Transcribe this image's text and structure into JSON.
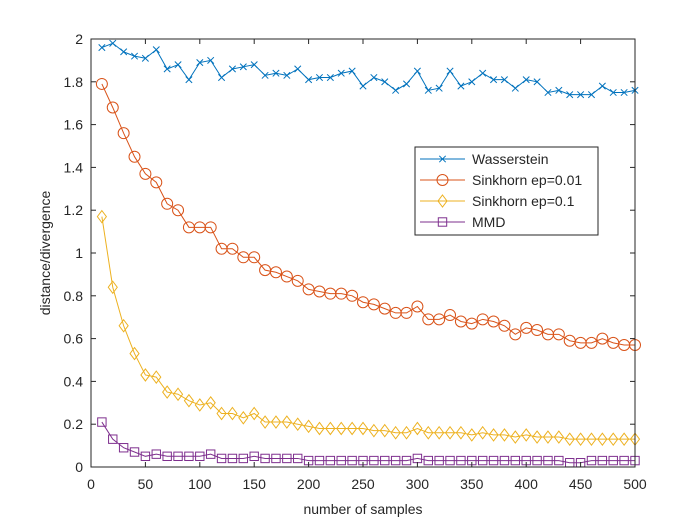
{
  "chart_data": {
    "type": "line",
    "title": "",
    "xlabel": "number of samples",
    "ylabel": "distance/divergence",
    "xlim": [
      0,
      500
    ],
    "ylim": [
      0,
      2
    ],
    "xticks": [
      0,
      50,
      100,
      150,
      200,
      250,
      300,
      350,
      400,
      450,
      500
    ],
    "yticks": [
      0,
      0.2,
      0.4,
      0.6,
      0.8,
      1,
      1.2,
      1.4,
      1.6,
      1.8,
      2
    ],
    "grid": false,
    "legend_position": "center-right",
    "x": [
      10,
      20,
      30,
      40,
      50,
      60,
      70,
      80,
      90,
      100,
      110,
      120,
      130,
      140,
      150,
      160,
      170,
      180,
      190,
      200,
      210,
      220,
      230,
      240,
      250,
      260,
      270,
      280,
      290,
      300,
      310,
      320,
      330,
      340,
      350,
      360,
      370,
      380,
      390,
      400,
      410,
      420,
      430,
      440,
      450,
      460,
      470,
      480,
      490,
      500
    ],
    "series": [
      {
        "name": "Wasserstein",
        "color": "#0072BD",
        "marker": "x",
        "values": [
          1.96,
          1.98,
          1.94,
          1.92,
          1.91,
          1.95,
          1.86,
          1.88,
          1.81,
          1.89,
          1.9,
          1.82,
          1.86,
          1.87,
          1.88,
          1.83,
          1.84,
          1.83,
          1.86,
          1.81,
          1.82,
          1.82,
          1.84,
          1.85,
          1.78,
          1.82,
          1.8,
          1.76,
          1.79,
          1.85,
          1.76,
          1.77,
          1.85,
          1.78,
          1.8,
          1.84,
          1.81,
          1.81,
          1.77,
          1.81,
          1.8,
          1.75,
          1.76,
          1.74,
          1.74,
          1.74,
          1.78,
          1.75,
          1.75,
          1.76
        ]
      },
      {
        "name": "Sinkhorn ep=0.01",
        "color": "#D95319",
        "marker": "circle",
        "values": [
          1.79,
          1.68,
          1.56,
          1.45,
          1.37,
          1.33,
          1.23,
          1.2,
          1.12,
          1.12,
          1.12,
          1.02,
          1.02,
          0.98,
          0.98,
          0.92,
          0.91,
          0.89,
          0.87,
          0.83,
          0.82,
          0.81,
          0.81,
          0.8,
          0.77,
          0.76,
          0.74,
          0.72,
          0.72,
          0.75,
          0.69,
          0.69,
          0.71,
          0.68,
          0.67,
          0.69,
          0.68,
          0.66,
          0.62,
          0.65,
          0.64,
          0.62,
          0.62,
          0.59,
          0.58,
          0.58,
          0.6,
          0.58,
          0.57,
          0.57
        ]
      },
      {
        "name": "Sinkhorn ep=0.1",
        "color": "#EDB120",
        "marker": "diamond",
        "values": [
          1.17,
          0.84,
          0.66,
          0.53,
          0.43,
          0.42,
          0.35,
          0.34,
          0.31,
          0.29,
          0.3,
          0.25,
          0.25,
          0.23,
          0.25,
          0.21,
          0.21,
          0.21,
          0.2,
          0.19,
          0.18,
          0.18,
          0.18,
          0.18,
          0.18,
          0.17,
          0.17,
          0.16,
          0.16,
          0.18,
          0.16,
          0.16,
          0.16,
          0.16,
          0.15,
          0.16,
          0.15,
          0.15,
          0.14,
          0.15,
          0.14,
          0.14,
          0.14,
          0.13,
          0.13,
          0.13,
          0.13,
          0.13,
          0.13,
          0.13
        ]
      },
      {
        "name": "MMD",
        "color": "#7E2F8E",
        "marker": "square",
        "values": [
          0.21,
          0.13,
          0.09,
          0.07,
          0.05,
          0.06,
          0.05,
          0.05,
          0.05,
          0.05,
          0.06,
          0.04,
          0.04,
          0.04,
          0.05,
          0.04,
          0.04,
          0.04,
          0.04,
          0.03,
          0.03,
          0.03,
          0.03,
          0.03,
          0.03,
          0.03,
          0.03,
          0.03,
          0.03,
          0.04,
          0.03,
          0.03,
          0.03,
          0.03,
          0.03,
          0.03,
          0.03,
          0.03,
          0.03,
          0.03,
          0.03,
          0.03,
          0.03,
          0.02,
          0.02,
          0.03,
          0.03,
          0.03,
          0.03,
          0.03
        ]
      }
    ]
  }
}
